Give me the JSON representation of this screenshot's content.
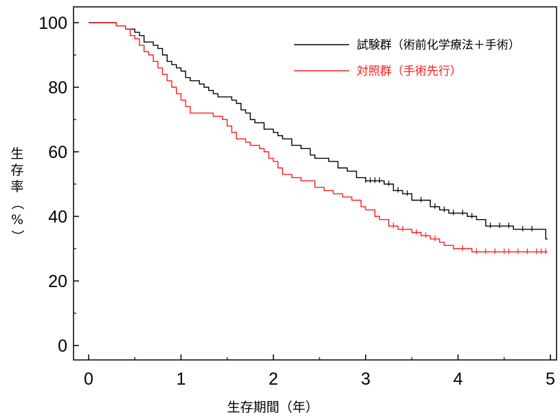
{
  "chart_data": {
    "type": "line",
    "title": "",
    "xlabel": "生存期間（年）",
    "ylabel_chars": [
      "生",
      "存",
      "率",
      "（",
      "%",
      "）"
    ],
    "xlim": [
      -0.2,
      5.1
    ],
    "ylim": [
      -5,
      105
    ],
    "x_ticks": [
      0,
      1,
      2,
      3,
      4,
      5
    ],
    "y_ticks": [
      0,
      20,
      40,
      60,
      80,
      100
    ],
    "grid": false,
    "legend_position": "top-right",
    "series": [
      {
        "name": "試験群（術前化学療法＋手術）",
        "color": "#000000",
        "step_points": [
          [
            0,
            100
          ],
          [
            0.3,
            99
          ],
          [
            0.4,
            98
          ],
          [
            0.5,
            97
          ],
          [
            0.55,
            96
          ],
          [
            0.6,
            94
          ],
          [
            0.7,
            93
          ],
          [
            0.75,
            92
          ],
          [
            0.8,
            90
          ],
          [
            0.85,
            88
          ],
          [
            0.9,
            87
          ],
          [
            0.95,
            86
          ],
          [
            1.0,
            85
          ],
          [
            1.05,
            83
          ],
          [
            1.1,
            82
          ],
          [
            1.2,
            81
          ],
          [
            1.25,
            80
          ],
          [
            1.3,
            79
          ],
          [
            1.35,
            78
          ],
          [
            1.4,
            77
          ],
          [
            1.55,
            76
          ],
          [
            1.6,
            75
          ],
          [
            1.65,
            73
          ],
          [
            1.7,
            72
          ],
          [
            1.75,
            70
          ],
          [
            1.8,
            69
          ],
          [
            1.9,
            67
          ],
          [
            2.0,
            66
          ],
          [
            2.05,
            65
          ],
          [
            2.1,
            64
          ],
          [
            2.2,
            62
          ],
          [
            2.3,
            61
          ],
          [
            2.4,
            59
          ],
          [
            2.45,
            58
          ],
          [
            2.6,
            57
          ],
          [
            2.7,
            55
          ],
          [
            2.8,
            54
          ],
          [
            2.9,
            52
          ],
          [
            3.0,
            51
          ],
          [
            3.2,
            50
          ],
          [
            3.3,
            48
          ],
          [
            3.4,
            47
          ],
          [
            3.5,
            45
          ],
          [
            3.7,
            43
          ],
          [
            3.8,
            42
          ],
          [
            3.9,
            41
          ],
          [
            4.1,
            40
          ],
          [
            4.2,
            39
          ],
          [
            4.3,
            37
          ],
          [
            4.6,
            36
          ],
          [
            4.95,
            33
          ]
        ],
        "end_x": 4.97,
        "censor_x": [
          3.0,
          3.05,
          3.1,
          3.15,
          3.25,
          3.35,
          3.45,
          3.6,
          3.75,
          3.85,
          3.95,
          4.05,
          4.15,
          4.35,
          4.45,
          4.55,
          4.7,
          4.8
        ]
      },
      {
        "name": "対照群（手術先行）",
        "color": "#ff1a1a",
        "step_points": [
          [
            0,
            100
          ],
          [
            0.3,
            99
          ],
          [
            0.4,
            98
          ],
          [
            0.45,
            96
          ],
          [
            0.5,
            95
          ],
          [
            0.55,
            93
          ],
          [
            0.6,
            91
          ],
          [
            0.65,
            90
          ],
          [
            0.7,
            88
          ],
          [
            0.75,
            86
          ],
          [
            0.8,
            84
          ],
          [
            0.85,
            82
          ],
          [
            0.9,
            80
          ],
          [
            0.95,
            78
          ],
          [
            1.0,
            76
          ],
          [
            1.05,
            74
          ],
          [
            1.1,
            72
          ],
          [
            1.35,
            71
          ],
          [
            1.45,
            70
          ],
          [
            1.5,
            68
          ],
          [
            1.55,
            66
          ],
          [
            1.6,
            64
          ],
          [
            1.7,
            63
          ],
          [
            1.75,
            62
          ],
          [
            1.85,
            61
          ],
          [
            1.9,
            60
          ],
          [
            1.95,
            58
          ],
          [
            2.0,
            57
          ],
          [
            2.05,
            55
          ],
          [
            2.1,
            53
          ],
          [
            2.2,
            52
          ],
          [
            2.3,
            51
          ],
          [
            2.45,
            49
          ],
          [
            2.55,
            48
          ],
          [
            2.65,
            47
          ],
          [
            2.75,
            46
          ],
          [
            2.85,
            45
          ],
          [
            2.95,
            43
          ],
          [
            3.0,
            42
          ],
          [
            3.1,
            40
          ],
          [
            3.15,
            39
          ],
          [
            3.25,
            37
          ],
          [
            3.35,
            36
          ],
          [
            3.5,
            35
          ],
          [
            3.6,
            34
          ],
          [
            3.7,
            33
          ],
          [
            3.8,
            32
          ],
          [
            3.85,
            31
          ],
          [
            3.95,
            30
          ],
          [
            4.15,
            29
          ]
        ],
        "end_x": 4.97,
        "censor_x": [
          3.3,
          3.4,
          3.55,
          3.65,
          3.75,
          4.05,
          4.2,
          4.3,
          4.4,
          4.5,
          4.55,
          4.65,
          4.75,
          4.85,
          4.9,
          4.95
        ]
      }
    ]
  }
}
